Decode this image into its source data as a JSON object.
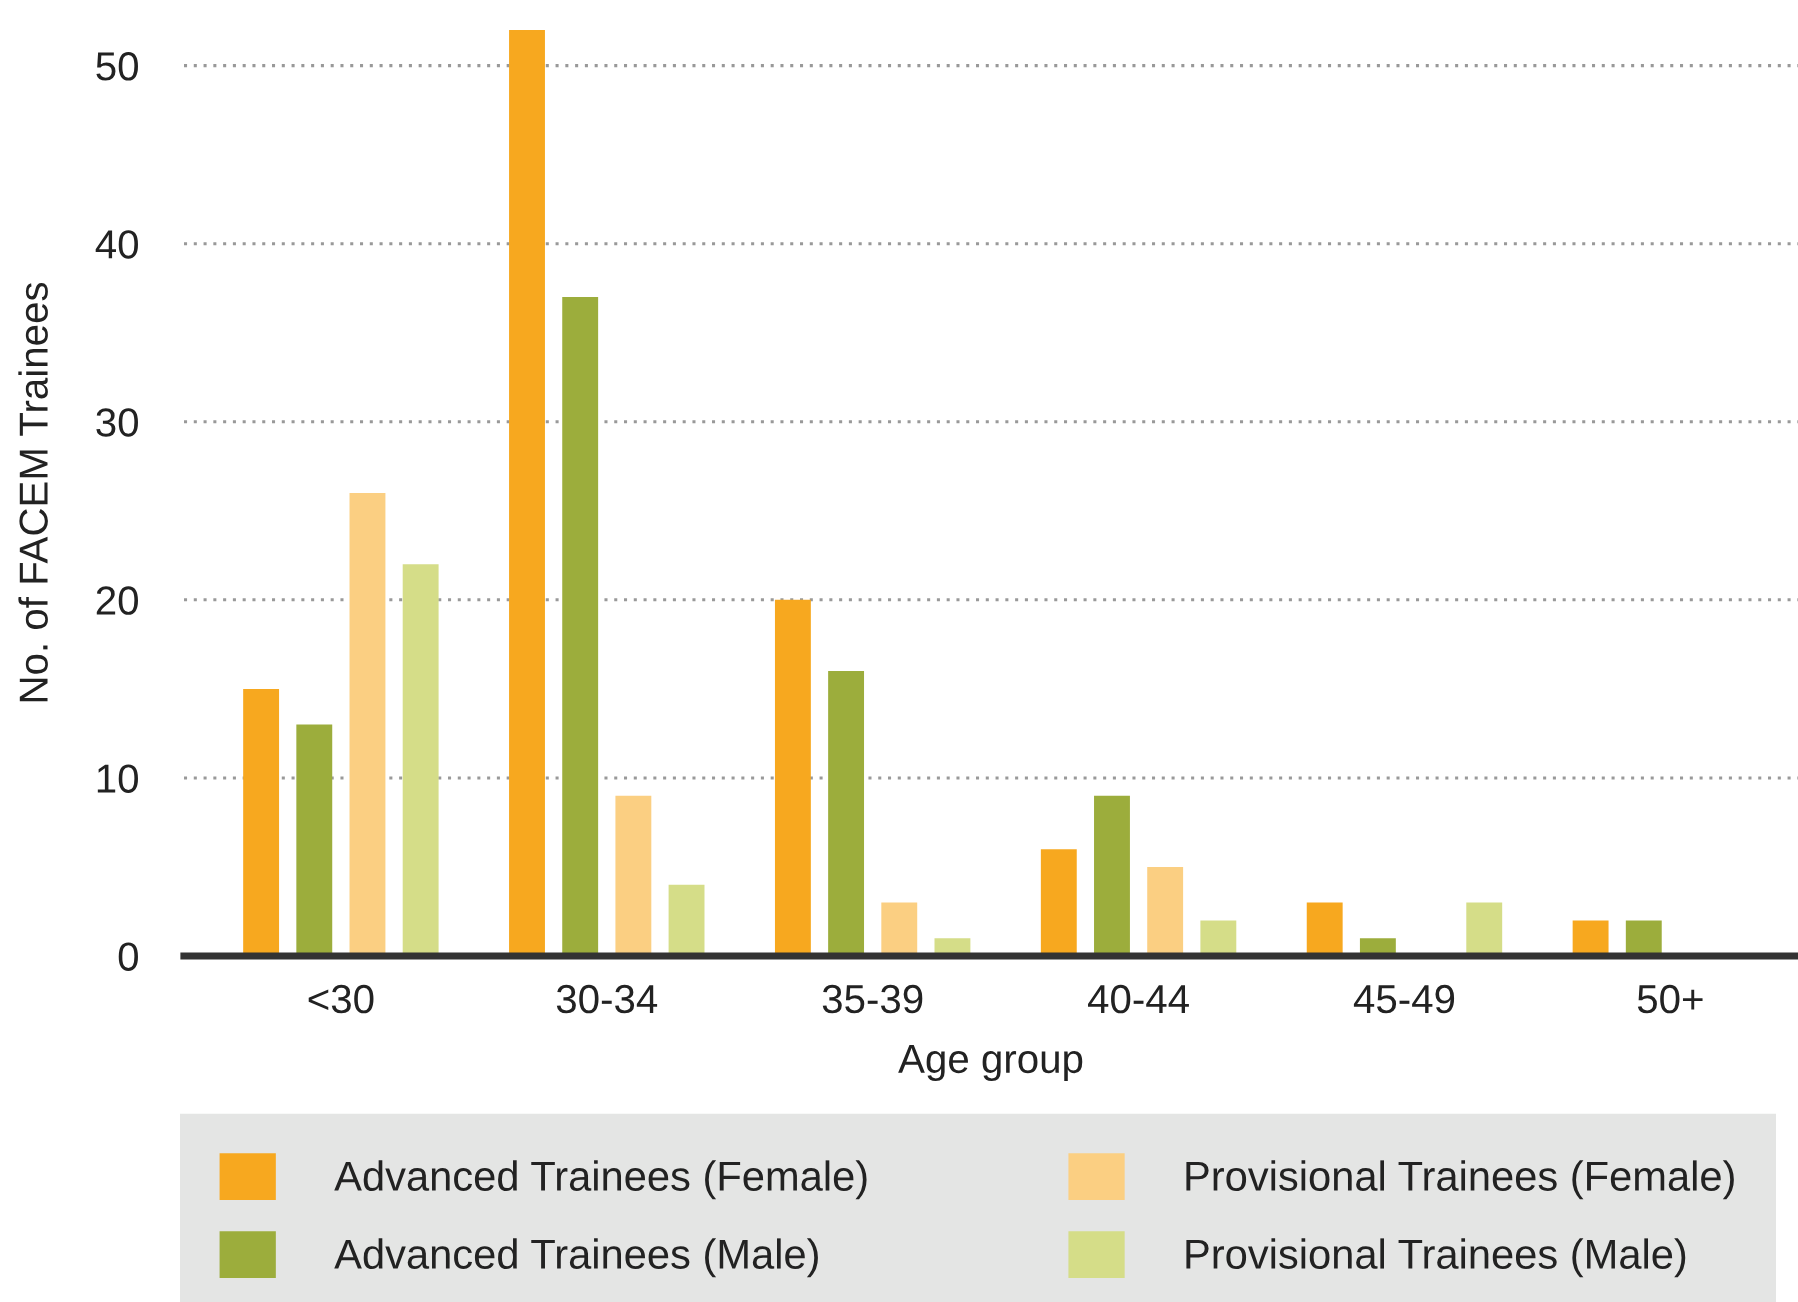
{
  "chart_data": {
    "type": "bar",
    "xlabel": "Age group",
    "ylabel": "No. of FACEM Trainees",
    "categories": [
      "<30",
      "30-34",
      "35-39",
      "40-44",
      "45-49",
      "50+"
    ],
    "series": [
      {
        "name": "Advanced Trainees (Female)",
        "color": "#f7a81f",
        "values": [
          15,
          52,
          20,
          6,
          3,
          2
        ]
      },
      {
        "name": "Advanced Trainees (Male)",
        "color": "#9cad3c",
        "values": [
          13,
          37,
          16,
          9,
          1,
          2
        ]
      },
      {
        "name": "Provisional Trainees (Female)",
        "color": "#fbcf82",
        "values": [
          26,
          9,
          3,
          5,
          0,
          0
        ]
      },
      {
        "name": "Provisional Trainees (Male)",
        "color": "#d5dd88",
        "values": [
          22,
          4,
          1,
          2,
          3,
          0
        ]
      }
    ],
    "ylim": [
      0,
      52
    ],
    "yticks": [
      0,
      10,
      20,
      30,
      40,
      50
    ],
    "grid": "y",
    "legend": "bottom"
  }
}
